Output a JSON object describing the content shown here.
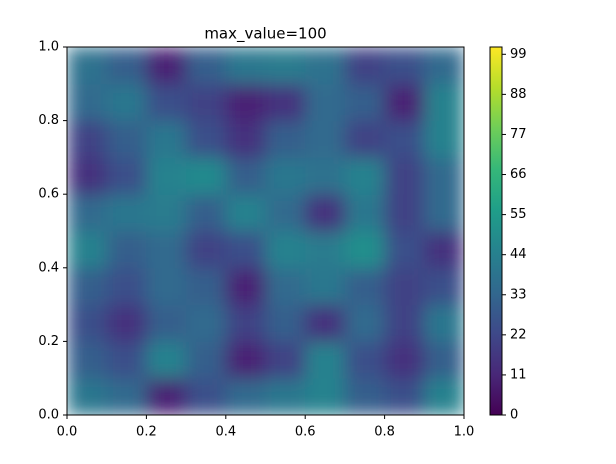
{
  "chart_data": {
    "type": "heatmap",
    "title": "max_value=100",
    "colormap": "viridis",
    "xlim": [
      0,
      1
    ],
    "ylim": [
      0,
      1
    ],
    "xticks": [
      {
        "value": 0,
        "label": "0.0"
      },
      {
        "value": 0.2,
        "label": "0.2"
      },
      {
        "value": 0.4,
        "label": "0.4"
      },
      {
        "value": 0.6,
        "label": "0.6"
      },
      {
        "value": 0.8,
        "label": "0.8"
      },
      {
        "value": 1,
        "label": "1.0"
      }
    ],
    "yticks": [
      {
        "value": 0,
        "label": "0.0"
      },
      {
        "value": 0.2,
        "label": "0.2"
      },
      {
        "value": 0.4,
        "label": "0.4"
      },
      {
        "value": 0.6,
        "label": "0.6"
      },
      {
        "value": 0.8,
        "label": "0.8"
      },
      {
        "value": 1,
        "label": "1.0"
      }
    ],
    "clim": [
      0,
      101
    ],
    "colorbar_ticks": [
      0,
      11,
      22,
      33,
      44,
      55,
      66,
      77,
      88,
      99
    ],
    "z": [
      [
        40,
        35,
        10,
        25,
        35,
        40,
        45,
        30,
        25,
        45
      ],
      [
        30,
        25,
        45,
        30,
        10,
        20,
        45,
        25,
        15,
        30
      ],
      [
        25,
        15,
        30,
        35,
        20,
        30,
        15,
        35,
        20,
        40
      ],
      [
        30,
        25,
        35,
        30,
        10,
        35,
        40,
        30,
        20,
        25
      ],
      [
        45,
        30,
        35,
        20,
        25,
        45,
        42,
        50,
        25,
        15
      ],
      [
        35,
        40,
        42,
        30,
        45,
        35,
        15,
        40,
        20,
        35
      ],
      [
        15,
        25,
        45,
        48,
        30,
        40,
        38,
        45,
        20,
        35
      ],
      [
        20,
        30,
        40,
        25,
        15,
        30,
        35,
        20,
        25,
        45
      ],
      [
        35,
        40,
        25,
        20,
        10,
        15,
        35,
        30,
        10,
        45
      ],
      [
        38,
        30,
        10,
        30,
        40,
        42,
        38,
        20,
        25,
        35
      ]
    ]
  }
}
